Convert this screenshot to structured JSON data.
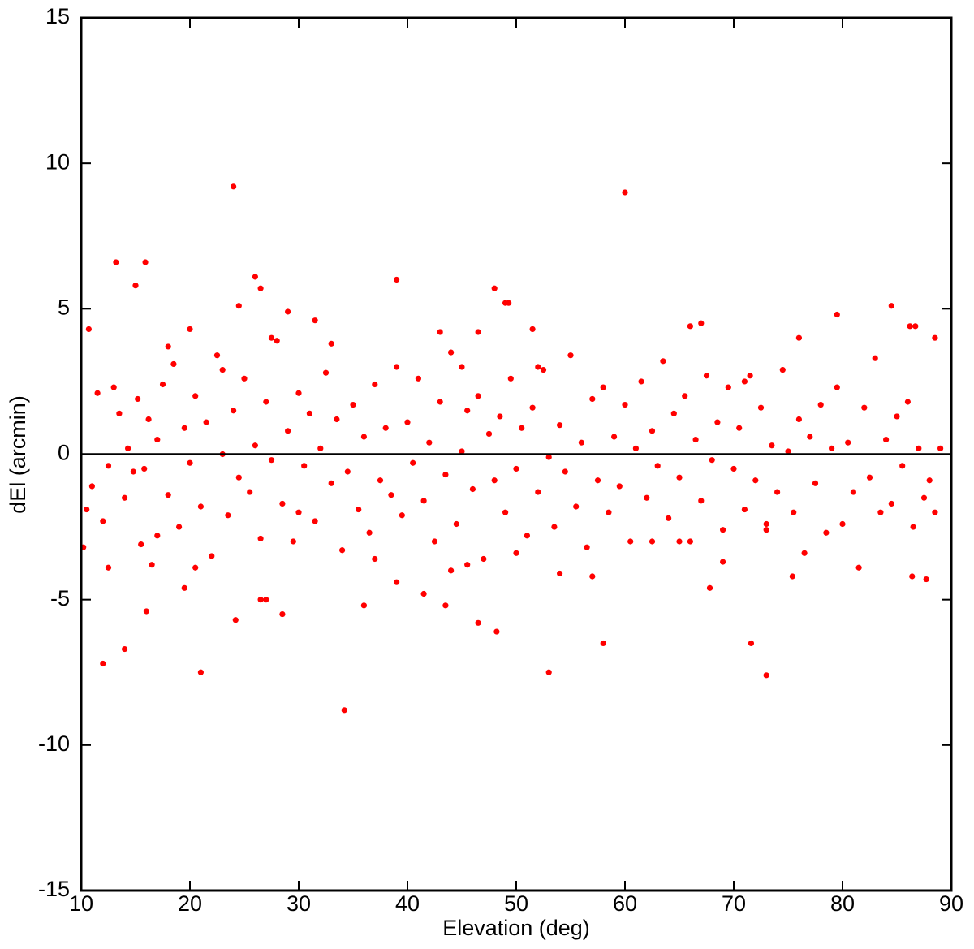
{
  "chart_data": {
    "type": "scatter",
    "xlabel": "Elevation (deg)",
    "ylabel": "dEl (arcmin)",
    "xlim": [
      10,
      90
    ],
    "ylim": [
      -15,
      15
    ],
    "xticks": [
      10,
      20,
      30,
      40,
      50,
      60,
      70,
      80,
      90
    ],
    "yticks": [
      -15,
      -10,
      -5,
      0,
      5,
      10,
      15
    ],
    "zero_line": 0,
    "color": "#ff0000",
    "x": [
      24,
      60,
      13.2,
      15.9,
      26,
      39,
      48,
      15,
      26.5,
      49,
      49.3,
      84.5,
      24.5,
      29,
      79.5,
      86.2,
      86.7,
      66,
      67,
      10.7,
      20,
      88.5,
      76,
      34.2,
      21,
      53,
      73,
      12,
      71.6,
      58,
      14,
      48.2,
      46.5,
      24.2,
      28.5,
      16,
      36,
      43.5,
      26.5,
      27,
      87.7,
      86.4,
      75.4,
      19.5,
      67.8,
      39,
      10.2,
      10.5,
      11,
      11.5,
      12,
      12.5,
      13,
      13.5,
      14,
      14.3,
      14.8,
      15.2,
      15.5,
      15.8,
      16.2,
      16.5,
      17,
      17.5,
      18,
      18.5,
      19,
      19.5,
      20,
      20.5,
      21,
      21.5,
      22,
      22.5,
      23,
      23.5,
      24,
      24.5,
      25,
      25.5,
      26,
      26.5,
      27,
      27.5,
      28,
      28.5,
      29,
      29.5,
      30,
      30.5,
      31,
      31.5,
      32,
      32.5,
      33,
      33.5,
      34,
      34.5,
      35,
      35.5,
      36,
      36.5,
      37,
      37.5,
      38,
      38.5,
      39,
      39.5,
      40,
      40.5,
      41,
      41.5,
      42,
      42.5,
      43,
      43.5,
      44,
      44.5,
      45,
      45.5,
      46,
      46.5,
      47,
      47.5,
      48,
      48.5,
      49,
      49.5,
      50,
      50.5,
      51,
      51.5,
      52,
      52.5,
      53,
      53.5,
      54,
      54.5,
      55,
      55.5,
      56,
      56.5,
      57,
      57.5,
      58,
      58.5,
      59,
      59.5,
      60,
      60.5,
      61,
      61.5,
      62,
      62.5,
      63,
      63.5,
      64,
      64.5,
      65,
      65.5,
      66,
      66.5,
      67,
      67.5,
      68,
      68.5,
      69,
      69.5,
      70,
      70.5,
      71,
      71.5,
      72,
      72.5,
      73,
      73.5,
      74,
      74.5,
      75,
      75.5,
      76,
      76.5,
      77,
      77.5,
      78,
      78.5,
      79,
      79.5,
      80,
      80.5,
      81,
      81.5,
      82,
      82.5,
      83,
      83.5,
      84,
      84.5,
      85,
      85.5,
      86,
      86.5,
      87,
      87.5,
      88,
      88.5,
      89,
      12.5,
      17,
      20.5,
      23,
      30,
      33,
      37,
      41.5,
      44,
      45.5,
      50,
      54,
      57,
      62.5,
      65,
      69,
      71,
      73,
      45,
      52,
      43,
      18,
      27.5,
      31.5,
      46.5,
      51.5
    ],
    "y": [
      9.2,
      9.0,
      6.6,
      6.6,
      6.1,
      6.0,
      5.7,
      5.8,
      5.7,
      5.2,
      5.2,
      5.1,
      5.1,
      4.9,
      4.8,
      4.4,
      4.4,
      4.4,
      4.5,
      4.3,
      4.3,
      4.0,
      4.0,
      -8.8,
      -7.5,
      -7.5,
      -7.6,
      -7.2,
      -6.5,
      -6.5,
      -6.7,
      -6.1,
      -5.8,
      -5.7,
      -5.5,
      -5.4,
      -5.2,
      -5.2,
      -5.0,
      -5.0,
      -4.3,
      -4.2,
      -4.2,
      -4.6,
      -4.6,
      -4.4,
      -3.2,
      -1.9,
      -1.1,
      2.1,
      -2.3,
      -0.4,
      2.3,
      1.4,
      -1.5,
      0.2,
      -0.6,
      1.9,
      -3.1,
      -0.5,
      1.2,
      -3.8,
      0.5,
      2.4,
      -1.4,
      3.1,
      -2.5,
      0.9,
      -0.3,
      2.0,
      -1.8,
      1.1,
      -3.5,
      3.4,
      0.0,
      -2.1,
      1.5,
      -0.8,
      2.6,
      -1.3,
      0.3,
      -2.9,
      1.8,
      -0.2,
      3.9,
      -1.7,
      0.8,
      -3.0,
      2.1,
      -0.4,
      1.4,
      -2.3,
      0.2,
      2.8,
      -1.0,
      1.2,
      -3.3,
      -0.6,
      1.7,
      -1.9,
      0.6,
      -2.7,
      2.4,
      -0.9,
      0.9,
      -1.4,
      3.0,
      -2.1,
      1.1,
      -0.3,
      2.6,
      -1.6,
      0.4,
      -3.0,
      1.8,
      -0.7,
      3.5,
      -2.4,
      0.1,
      1.5,
      -1.2,
      2.0,
      -3.6,
      0.7,
      -0.9,
      1.3,
      -2.0,
      2.6,
      -0.5,
      0.9,
      -2.8,
      1.6,
      -1.3,
      2.9,
      -0.1,
      -2.5,
      1.0,
      -0.6,
      3.4,
      -1.8,
      0.4,
      -3.2,
      1.9,
      -0.9,
      2.3,
      -2.0,
      0.6,
      -1.1,
      1.7,
      -3.0,
      0.2,
      2.5,
      -1.5,
      0.8,
      -0.4,
      3.2,
      -2.2,
      1.4,
      -0.8,
      2.0,
      -3.0,
      0.5,
      -1.6,
      2.7,
      -0.2,
      1.1,
      -2.6,
      2.3,
      -0.5,
      0.9,
      -1.9,
      2.7,
      -0.9,
      1.6,
      -2.4,
      0.3,
      -1.3,
      2.9,
      0.1,
      -2.0,
      1.2,
      -3.4,
      0.6,
      -1.0,
      1.7,
      -2.7,
      0.2,
      2.3,
      -2.4,
      0.4,
      -1.3,
      -3.9,
      1.6,
      -0.8,
      3.3,
      -2.0,
      0.5,
      -1.7,
      1.3,
      -0.4,
      1.8,
      -2.5,
      0.2,
      -1.5,
      -0.9,
      -2.0,
      0.2,
      -3.9,
      -2.8,
      -3.9,
      2.9,
      -2.0,
      3.8,
      -3.6,
      -4.8,
      -4.0,
      -3.8,
      -3.4,
      -4.1,
      -4.2,
      -3.0,
      -3.0,
      -3.7,
      2.5,
      -2.6,
      3.0,
      3.0,
      4.2,
      3.7,
      4.0,
      4.6,
      4.2,
      4.3
    ]
  }
}
